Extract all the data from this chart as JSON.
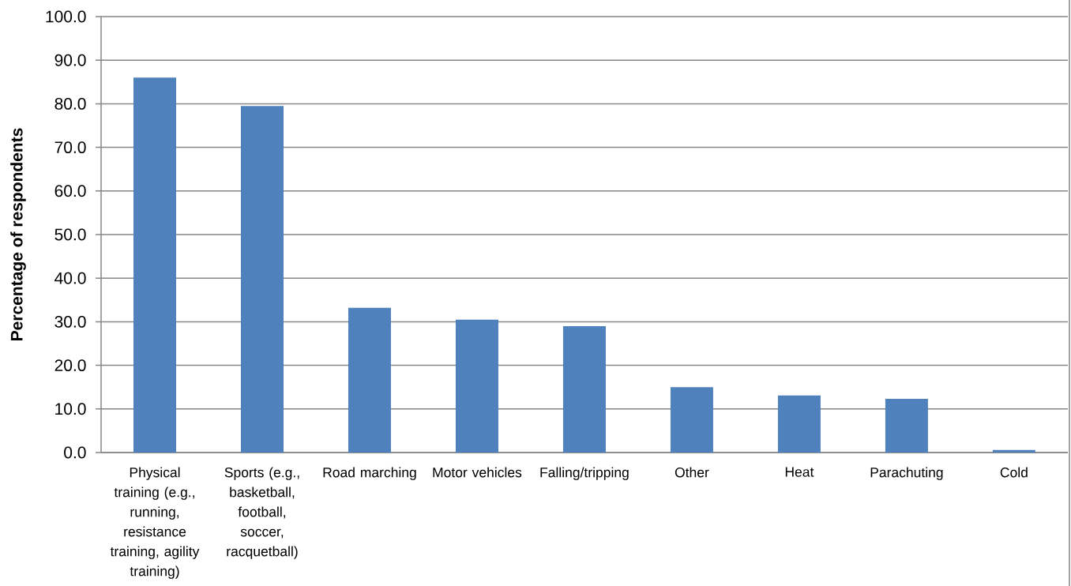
{
  "chart_data": {
    "type": "bar",
    "ylabel": "Percentage of respondents",
    "categories": [
      "Physical training (e.g., running, resistance training, agility training)",
      "Sports (e.g., basketball, football, soccer, racquetball)",
      "Road marching",
      "Motor vehicles",
      "Falling/tripping",
      "Other",
      "Heat",
      "Parachuting",
      "Cold"
    ],
    "values": [
      86.0,
      79.5,
      33.2,
      30.5,
      29.0,
      15.0,
      13.1,
      12.3,
      0.6
    ],
    "color": "#4f81bd",
    "ylim": [
      0,
      100
    ],
    "yticks": [
      {
        "value": 0,
        "label": "0.0"
      },
      {
        "value": 10,
        "label": "10.0"
      },
      {
        "value": 20,
        "label": "20.0"
      },
      {
        "value": 30,
        "label": "30.0"
      },
      {
        "value": 40,
        "label": "40.0"
      },
      {
        "value": 50,
        "label": "50.0"
      },
      {
        "value": 60,
        "label": "60.0"
      },
      {
        "value": 70,
        "label": "70.0"
      },
      {
        "value": 80,
        "label": "80.0"
      },
      {
        "value": 90,
        "label": "90.0"
      },
      {
        "value": 100,
        "label": "100.0"
      }
    ],
    "grid": "y"
  }
}
